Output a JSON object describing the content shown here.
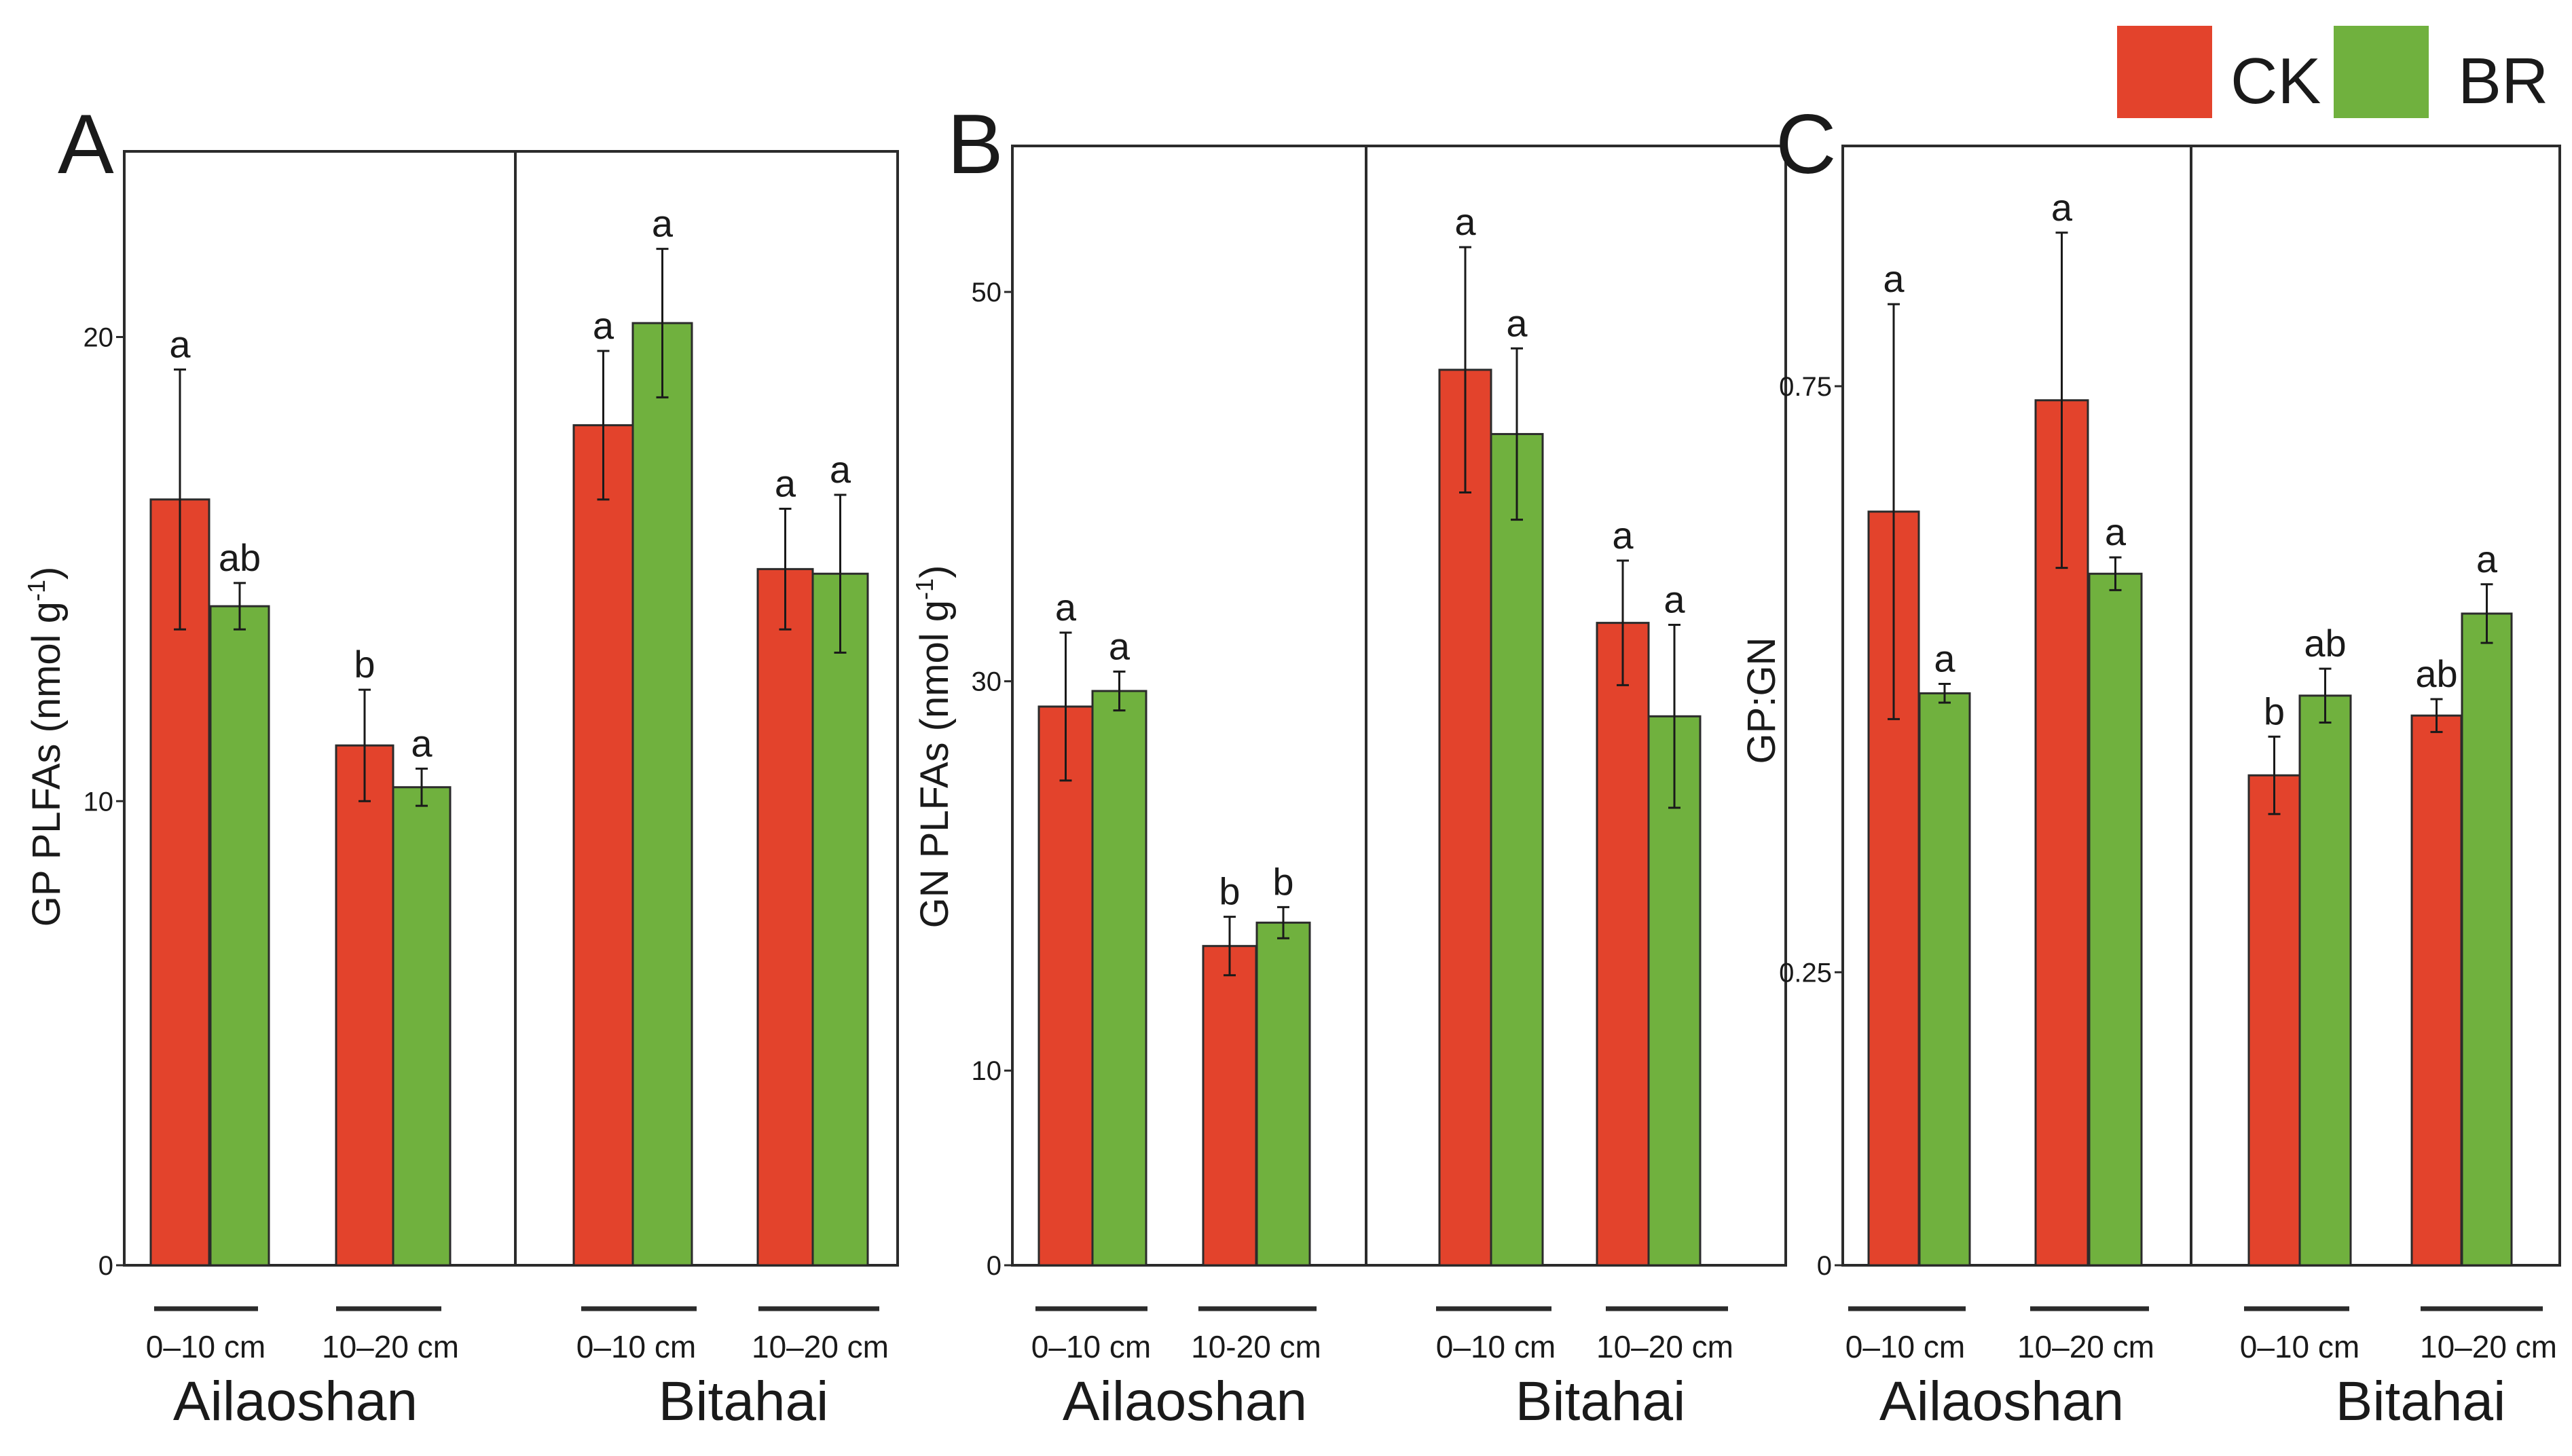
{
  "colors": {
    "ck": "#e3432c",
    "br": "#70b13e"
  },
  "legend": [
    {
      "key": "ck",
      "label": "CK"
    },
    {
      "key": "br",
      "label": "BR"
    }
  ],
  "chart_data": [
    {
      "panel": "A",
      "type": "bar",
      "ylabel": "GP  PLFAs (nmol g",
      "ylabel_sup": "-1",
      "ylabel_close": ")",
      "ylim": [
        0,
        24
      ],
      "yticks": [
        0,
        10,
        20
      ],
      "sites": [
        "Ailaoshan",
        "Bitahai"
      ],
      "depths": [
        "0–10 cm",
        "10–20 cm",
        "0–10 cm",
        "10–20 cm"
      ],
      "series": [
        {
          "name": "CK",
          "values": [
            16.5,
            11.2,
            18.1,
            15.0
          ],
          "errors": [
            2.8,
            1.2,
            1.6,
            1.3
          ],
          "letters": [
            "a",
            "b",
            "a",
            "a"
          ]
        },
        {
          "name": "BR",
          "values": [
            14.2,
            10.3,
            20.3,
            14.9
          ],
          "errors": [
            0.5,
            0.4,
            1.6,
            1.7
          ],
          "letters": [
            "ab",
            "a",
            "a",
            "a"
          ]
        }
      ]
    },
    {
      "panel": "B",
      "type": "bar",
      "ylabel": "GN  PLFAs (nmol g",
      "ylabel_sup": "-1",
      "ylabel_close": ")",
      "ylim": [
        0,
        57.5
      ],
      "yticks": [
        0,
        10,
        30,
        50
      ],
      "sites": [
        "Ailaoshan",
        "Bitahai"
      ],
      "depths": [
        "0–10 cm",
        "10-20 cm",
        "0–10 cm",
        "10–20 cm"
      ],
      "series": [
        {
          "name": "CK",
          "values": [
            28.7,
            16.4,
            46.0,
            33.0
          ],
          "errors": [
            3.8,
            1.5,
            6.3,
            3.2
          ],
          "letters": [
            "a",
            "b",
            "a",
            "a"
          ]
        },
        {
          "name": "BR",
          "values": [
            29.5,
            17.6,
            42.7,
            28.2
          ],
          "errors": [
            1.0,
            0.8,
            4.4,
            4.7
          ],
          "letters": [
            "a",
            "b",
            "a",
            "a"
          ]
        }
      ]
    },
    {
      "panel": "C",
      "type": "bar",
      "ylabel": "GP:GN",
      "ylim": [
        0,
        0.955
      ],
      "yticks": [
        0,
        0.25,
        0.75
      ],
      "sites": [
        "Ailaoshan",
        "Bitahai"
      ],
      "depths": [
        "0–10 cm",
        "10–20 cm",
        "0–10 cm",
        "10–20 cm"
      ],
      "series": [
        {
          "name": "CK",
          "values": [
            0.643,
            0.738,
            0.418,
            0.469
          ],
          "errors": [
            0.177,
            0.143,
            0.033,
            0.014
          ],
          "letters": [
            "a",
            "a",
            "b",
            "ab"
          ]
        },
        {
          "name": "BR",
          "values": [
            0.488,
            0.59,
            0.486,
            0.556
          ],
          "errors": [
            0.008,
            0.014,
            0.023,
            0.025
          ],
          "letters": [
            "a",
            "a",
            "ab",
            "a"
          ]
        }
      ]
    }
  ]
}
